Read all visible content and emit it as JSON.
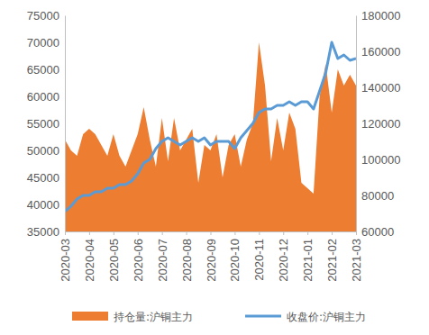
{
  "chart_data": {
    "type": "line",
    "categories": [
      "2020-03",
      null,
      null,
      null,
      "2020-04",
      null,
      null,
      null,
      "2020-05",
      null,
      null,
      null,
      "2020-06",
      null,
      null,
      null,
      "2020-07",
      null,
      null,
      null,
      "2020-08",
      null,
      null,
      null,
      "2020-09",
      null,
      null,
      null,
      "2020-10",
      null,
      null,
      null,
      "2020-11",
      null,
      null,
      null,
      "2020-12",
      null,
      null,
      null,
      "2021-01",
      null,
      null,
      null,
      "2021-02",
      null,
      null,
      null,
      "2021-03"
    ],
    "series": [
      {
        "name": "持仓量:沪铜主力",
        "color": "#ed7d31",
        "type": "area",
        "values": [
          52000,
          50000,
          49000,
          53000,
          54000,
          53000,
          51000,
          49000,
          53000,
          49000,
          47000,
          50000,
          53000,
          58000,
          52000,
          47000,
          56000,
          48000,
          56000,
          50000,
          52000,
          54000,
          44000,
          51000,
          50000,
          53000,
          45000,
          51000,
          53000,
          47000,
          52000,
          55000,
          70000,
          62000,
          48000,
          56000,
          50000,
          57000,
          54000,
          44000,
          43000,
          42000,
          60000,
          66000,
          57000,
          65000,
          62000,
          64000,
          62000
        ]
      },
      {
        "name": "收盘价:沪铜主力",
        "color": "#5b9bd5",
        "type": "line",
        "axis": "y2",
        "values": [
          71000,
          74000,
          78000,
          80000,
          80000,
          82000,
          82000,
          84000,
          84000,
          86000,
          86000,
          88000,
          92000,
          98000,
          100000,
          106000,
          110000,
          112000,
          110000,
          108000,
          110000,
          112000,
          110000,
          112000,
          108000,
          110000,
          110000,
          110000,
          106000,
          112000,
          116000,
          120000,
          126000,
          128000,
          128000,
          130000,
          130000,
          132000,
          130000,
          132000,
          132000,
          128000,
          138000,
          148000,
          165000,
          156000,
          158000,
          155000,
          156000
        ]
      }
    ],
    "ylim": [
      35000,
      75000
    ],
    "yticks": [
      35000,
      40000,
      45000,
      50000,
      55000,
      60000,
      65000,
      70000,
      75000
    ],
    "y2lim": [
      60000,
      180000
    ],
    "y2ticks": [
      60000,
      80000,
      100000,
      120000,
      140000,
      160000,
      180000
    ],
    "legend": "bottom"
  }
}
